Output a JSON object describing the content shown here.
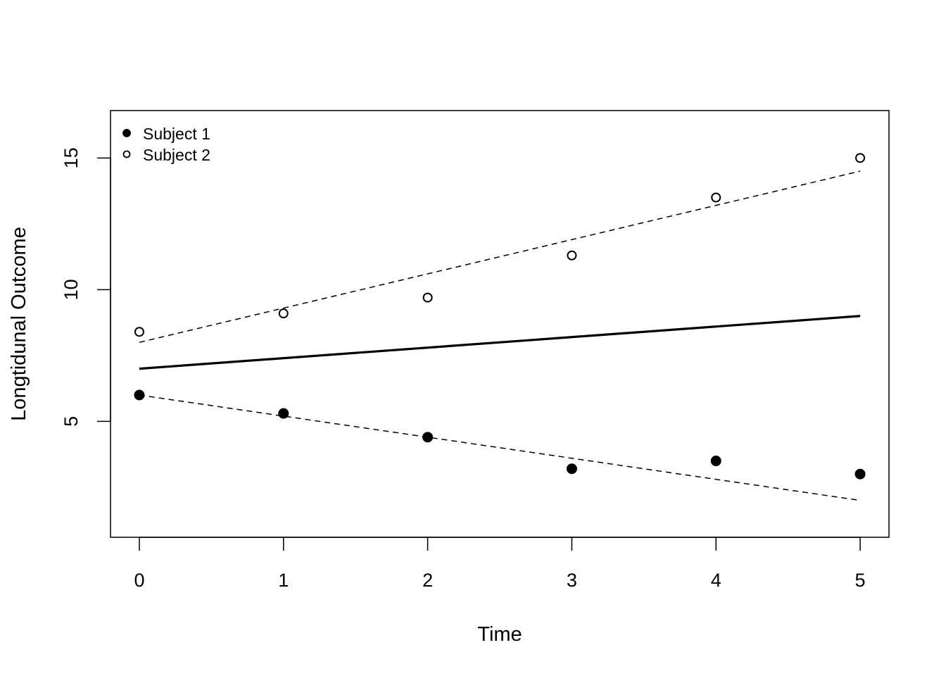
{
  "chart_data": {
    "type": "scatter",
    "title": "",
    "xlabel": "Time",
    "ylabel": "Longtidunal Outcome",
    "xlim": [
      -0.2,
      5.2
    ],
    "ylim": [
      0.6,
      16.8
    ],
    "xticks": [
      0,
      1,
      2,
      3,
      4,
      5
    ],
    "yticks": [
      5,
      10,
      15
    ],
    "grid": false,
    "legend": {
      "placement": "top-left",
      "entries": [
        {
          "label": "Subject 1",
          "marker": "filled-circle"
        },
        {
          "label": "Subject 2",
          "marker": "open-circle"
        }
      ]
    },
    "series": [
      {
        "name": "Subject 1",
        "marker": "filled-circle",
        "x": [
          0,
          1,
          2,
          3,
          4,
          5
        ],
        "y": [
          6.0,
          5.3,
          4.4,
          3.2,
          3.5,
          3.0
        ]
      },
      {
        "name": "Subject 2",
        "marker": "open-circle",
        "x": [
          0,
          1,
          2,
          3,
          4,
          5
        ],
        "y": [
          8.4,
          9.1,
          9.7,
          11.3,
          13.5,
          15.0
        ]
      }
    ],
    "lines": [
      {
        "style": "solid",
        "x": [
          0,
          5
        ],
        "y": [
          7.0,
          9.0
        ]
      },
      {
        "style": "dashed",
        "x": [
          0,
          5
        ],
        "y": [
          8.0,
          14.5
        ]
      },
      {
        "style": "dashed",
        "x": [
          0,
          5
        ],
        "y": [
          6.0,
          2.0
        ]
      }
    ]
  }
}
